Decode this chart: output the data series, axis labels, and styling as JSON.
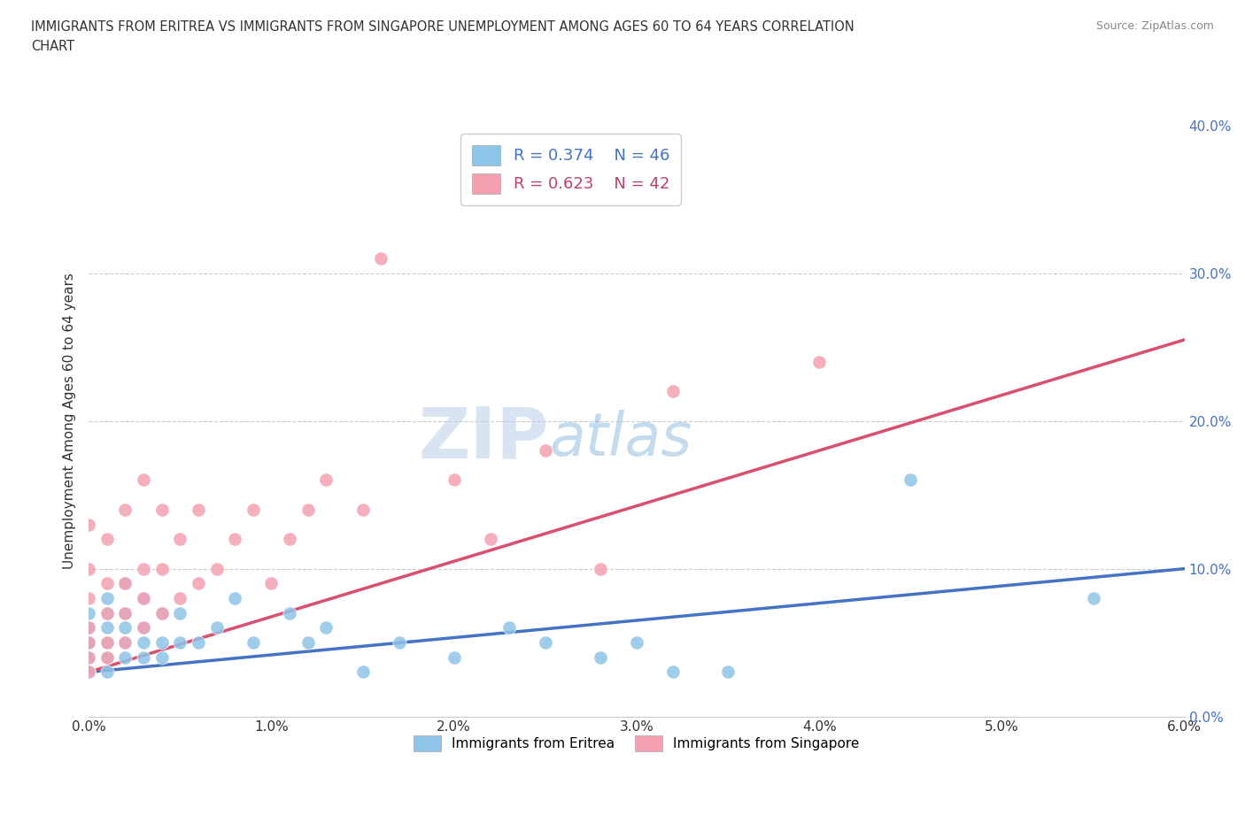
{
  "title": "IMMIGRANTS FROM ERITREA VS IMMIGRANTS FROM SINGAPORE UNEMPLOYMENT AMONG AGES 60 TO 64 YEARS CORRELATION\nCHART",
  "source": "Source: ZipAtlas.com",
  "ylabel": "Unemployment Among Ages 60 to 64 years",
  "xlim": [
    0.0,
    0.06
  ],
  "ylim": [
    0.0,
    0.4
  ],
  "xticks": [
    0.0,
    0.01,
    0.02,
    0.03,
    0.04,
    0.05,
    0.06
  ],
  "yticks": [
    0.0,
    0.1,
    0.2,
    0.3,
    0.4
  ],
  "eritrea_color": "#8ec4e8",
  "singapore_color": "#f4a0b0",
  "eritrea_R": 0.374,
  "eritrea_N": 46,
  "singapore_R": 0.623,
  "singapore_N": 42,
  "trend_eritrea_color": "#4472c4",
  "trend_singapore_color": "#d94f6e",
  "watermark_zip": "ZIP",
  "watermark_atlas": "atlas",
  "eritrea_x": [
    0.0,
    0.0,
    0.0,
    0.0,
    0.0,
    0.0,
    0.0,
    0.0,
    0.001,
    0.001,
    0.001,
    0.001,
    0.001,
    0.001,
    0.002,
    0.002,
    0.002,
    0.002,
    0.002,
    0.003,
    0.003,
    0.003,
    0.003,
    0.004,
    0.004,
    0.004,
    0.005,
    0.005,
    0.006,
    0.007,
    0.008,
    0.009,
    0.011,
    0.012,
    0.013,
    0.015,
    0.017,
    0.02,
    0.023,
    0.025,
    0.028,
    0.03,
    0.032,
    0.035,
    0.045,
    0.055
  ],
  "eritrea_y": [
    0.03,
    0.03,
    0.04,
    0.04,
    0.05,
    0.05,
    0.06,
    0.07,
    0.03,
    0.04,
    0.05,
    0.06,
    0.07,
    0.08,
    0.04,
    0.05,
    0.06,
    0.07,
    0.09,
    0.04,
    0.05,
    0.06,
    0.08,
    0.04,
    0.05,
    0.07,
    0.05,
    0.07,
    0.05,
    0.06,
    0.08,
    0.05,
    0.07,
    0.05,
    0.06,
    0.03,
    0.05,
    0.04,
    0.06,
    0.05,
    0.04,
    0.05,
    0.03,
    0.03,
    0.16,
    0.08
  ],
  "singapore_x": [
    0.0,
    0.0,
    0.0,
    0.0,
    0.0,
    0.0,
    0.0,
    0.001,
    0.001,
    0.001,
    0.001,
    0.001,
    0.002,
    0.002,
    0.002,
    0.002,
    0.003,
    0.003,
    0.003,
    0.003,
    0.004,
    0.004,
    0.004,
    0.005,
    0.005,
    0.006,
    0.006,
    0.007,
    0.008,
    0.009,
    0.01,
    0.011,
    0.012,
    0.013,
    0.015,
    0.016,
    0.02,
    0.022,
    0.025,
    0.028,
    0.032,
    0.04
  ],
  "singapore_y": [
    0.03,
    0.04,
    0.05,
    0.06,
    0.08,
    0.1,
    0.13,
    0.04,
    0.05,
    0.07,
    0.09,
    0.12,
    0.05,
    0.07,
    0.09,
    0.14,
    0.06,
    0.08,
    0.1,
    0.16,
    0.07,
    0.1,
    0.14,
    0.08,
    0.12,
    0.09,
    0.14,
    0.1,
    0.12,
    0.14,
    0.09,
    0.12,
    0.14,
    0.16,
    0.14,
    0.31,
    0.16,
    0.12,
    0.18,
    0.1,
    0.22,
    0.24
  ],
  "trend_eritrea_x0": 0.0,
  "trend_eritrea_x1": 0.06,
  "trend_eritrea_y0": 0.03,
  "trend_eritrea_y1": 0.1,
  "trend_singapore_x0": 0.0,
  "trend_singapore_x1": 0.06,
  "trend_singapore_y0": 0.03,
  "trend_singapore_y1": 0.255
}
